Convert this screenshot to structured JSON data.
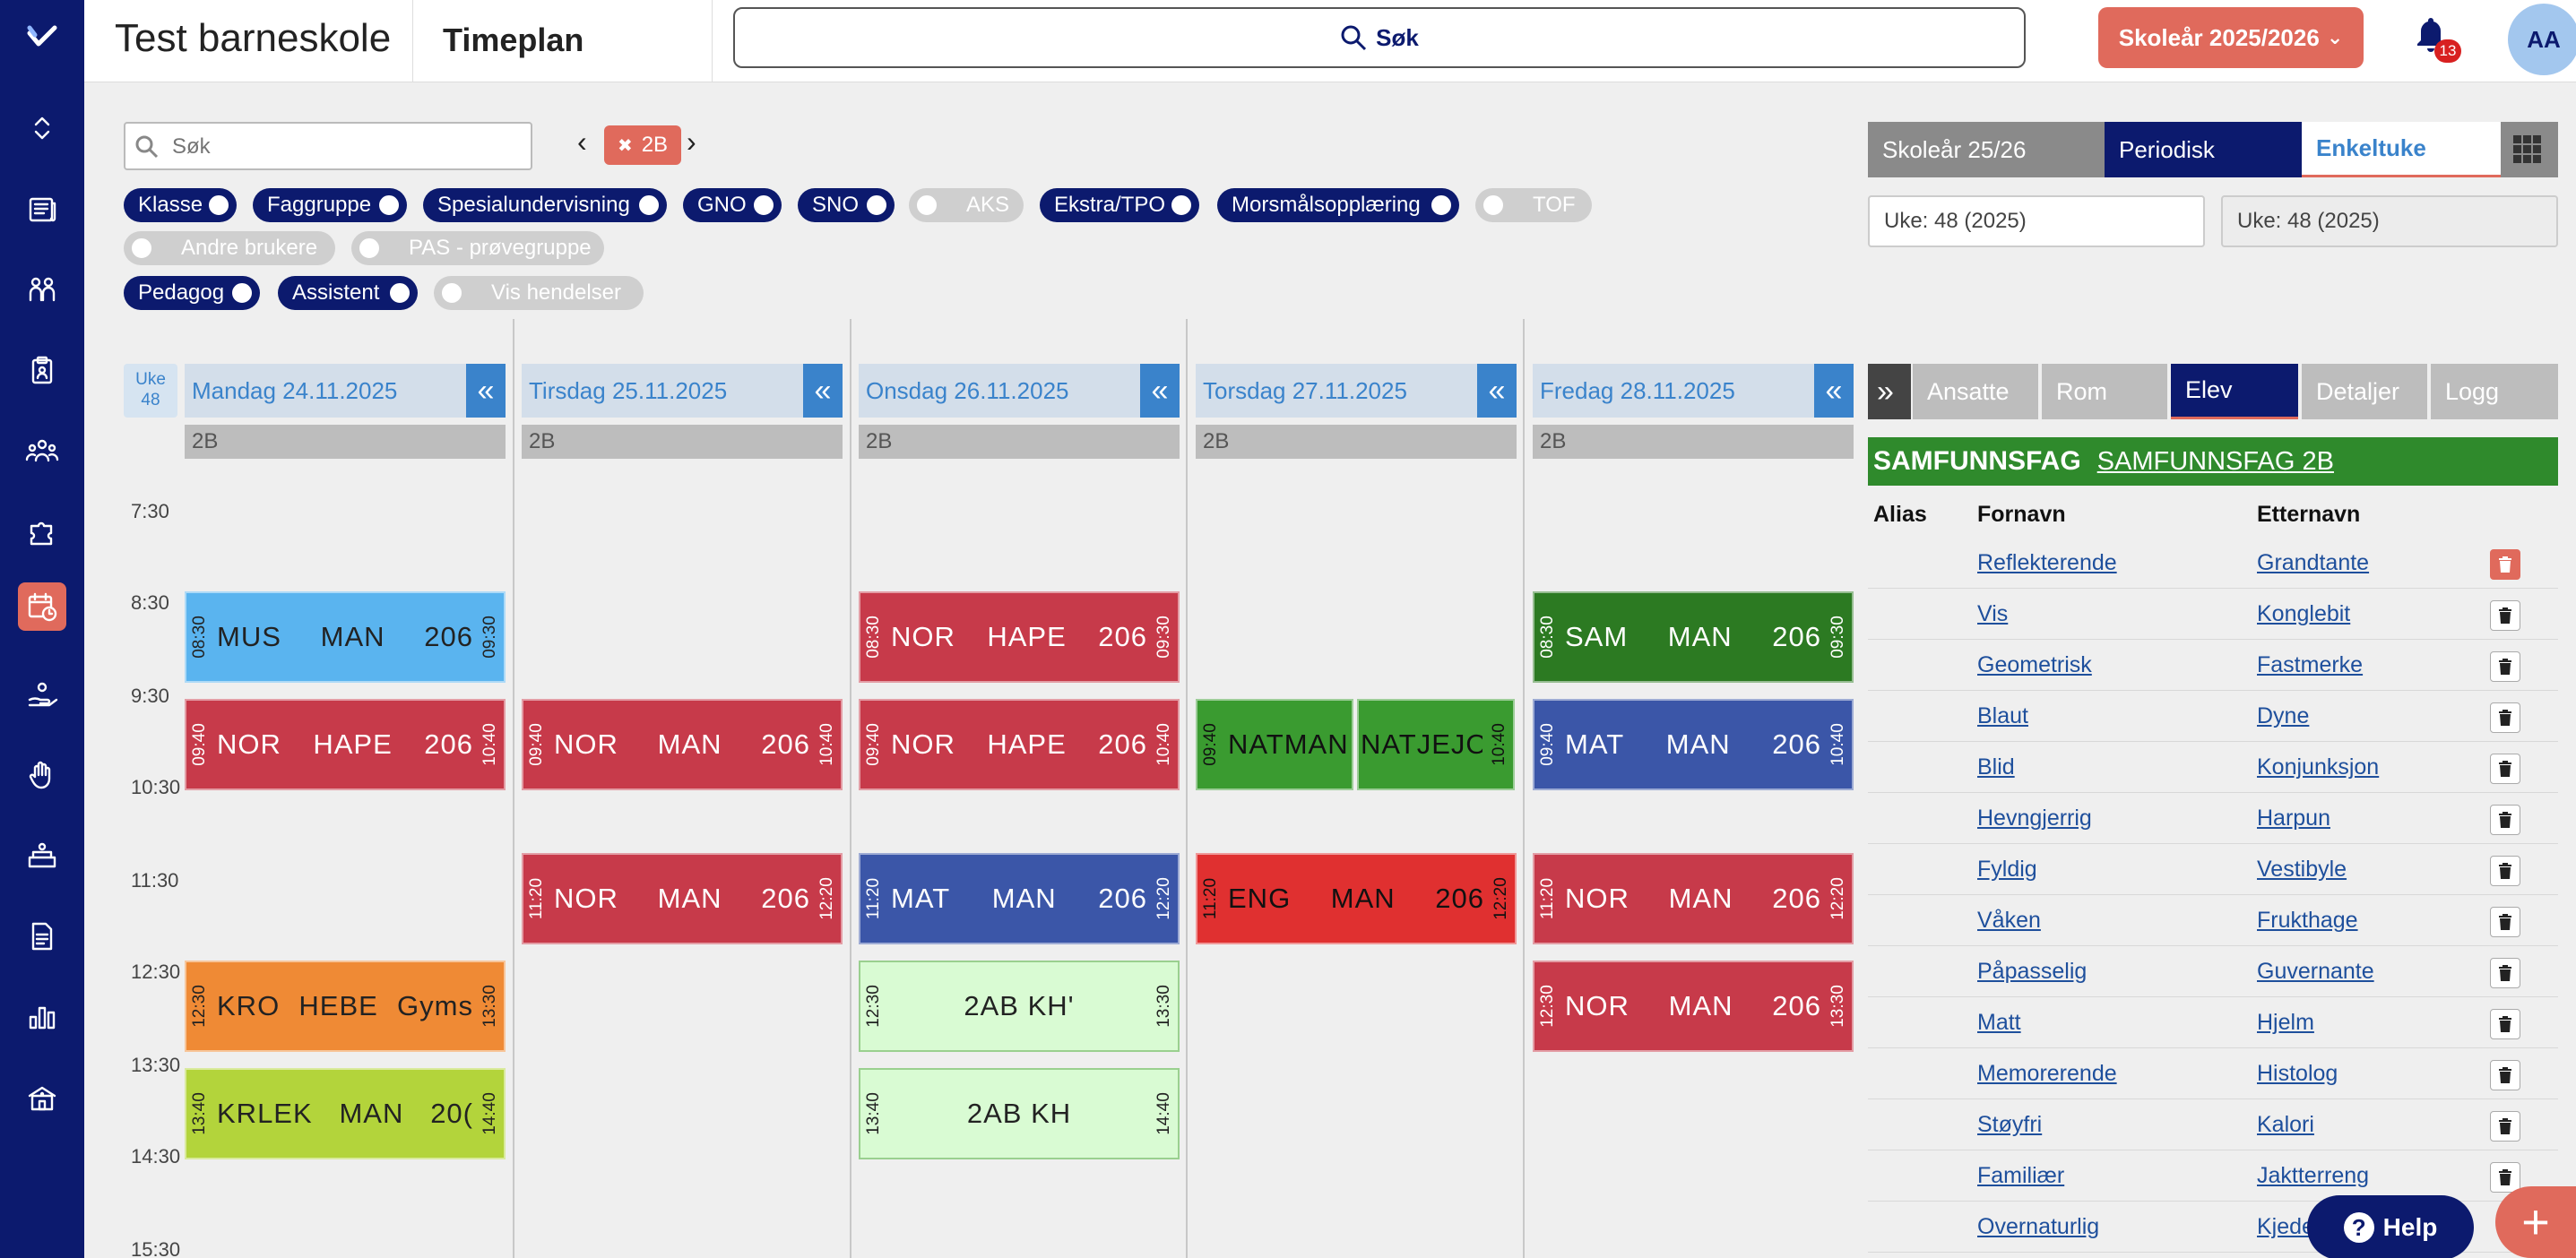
{
  "header": {
    "school_name": "Test barneskole",
    "page_title": "Timeplan",
    "search_label": "Søk",
    "school_year_button": "Skoleår 2025/2026",
    "notification_count": "13",
    "user_initials": "AA"
  },
  "filters": {
    "search_placeholder": "Søk",
    "selected_class": "2B",
    "toggles": [
      {
        "label": "Klasse",
        "on": true
      },
      {
        "label": "Faggruppe",
        "on": true
      },
      {
        "label": "Spesialundervisning",
        "on": true
      },
      {
        "label": "GNO",
        "on": true
      },
      {
        "label": "SNO",
        "on": true
      },
      {
        "label": "AKS",
        "on": false
      },
      {
        "label": "Ekstra/TPO",
        "on": true
      },
      {
        "label": "Morsmålsopplæring",
        "on": true
      },
      {
        "label": "TOF",
        "on": false
      },
      {
        "label": "Andre brukere",
        "on": false
      },
      {
        "label": "PAS - prøvegruppe",
        "on": false
      },
      {
        "label": "Pedagog",
        "on": true
      },
      {
        "label": "Assistent",
        "on": true
      },
      {
        "label": "Vis hendelser",
        "on": false
      }
    ]
  },
  "period_tabs": [
    "Skoleår 25/26",
    "Periodisk",
    "Enkeltuke"
  ],
  "week_fields": [
    "Uke: 48 (2025)",
    "Uke: 48 (2025)"
  ],
  "calendar": {
    "week_label": "Uke",
    "week_number": "48",
    "hours": [
      "7:30",
      "8:30",
      "9:30",
      "10:30",
      "11:30",
      "12:30",
      "13:30",
      "14:30",
      "15:30"
    ],
    "days": [
      {
        "label": "Mandag 24.11.2025",
        "class": "2B",
        "collapse": "«"
      },
      {
        "label": "Tirsdag 25.11.2025",
        "class": "2B",
        "collapse": "«"
      },
      {
        "label": "Onsdag 26.11.2025",
        "class": "2B",
        "collapse": "«"
      },
      {
        "label": "Torsdag 27.11.2025",
        "class": "2B",
        "collapse": "«"
      },
      {
        "label": "Fredag 28.11.2025",
        "class": "2B",
        "collapse": "«"
      }
    ],
    "lessons": {
      "mon_mus": {
        "start": "08:30",
        "end": "09:30",
        "subject": "MUS",
        "teacher": "MAN",
        "room": "206",
        "color": "#5ab4ef"
      },
      "mon_nor": {
        "start": "09:40",
        "end": "10:40",
        "subject": "NOR",
        "teacher": "HAPE",
        "room": "206",
        "color": "#c73a4a"
      },
      "mon_kro": {
        "start": "12:30",
        "end": "13:30",
        "subject": "KRO",
        "teacher": "HEBE",
        "room": "Gyms",
        "color": "#ef8a35"
      },
      "mon_krlek": {
        "start": "13:40",
        "end": "14:40",
        "subject": "KRLEK",
        "teacher": "MAN",
        "room": "20(",
        "color": "#b3d43b"
      },
      "tue_nor1": {
        "start": "09:40",
        "end": "10:40",
        "subject": "NOR",
        "teacher": "MAN",
        "room": "206",
        "color": "#c73a4a"
      },
      "tue_nor2": {
        "start": "11:20",
        "end": "12:20",
        "subject": "NOR",
        "teacher": "MAN",
        "room": "206",
        "color": "#c73a4a"
      },
      "wed_nor1": {
        "start": "08:30",
        "end": "09:30",
        "subject": "NOR",
        "teacher": "HAPE",
        "room": "206",
        "color": "#c73a4a"
      },
      "wed_nor2": {
        "start": "09:40",
        "end": "10:40",
        "subject": "NOR",
        "teacher": "HAPE",
        "room": "206",
        "color": "#c73a4a"
      },
      "wed_mat": {
        "start": "11:20",
        "end": "12:20",
        "subject": "MAT",
        "teacher": "MAN",
        "room": "206",
        "color": "#3b56a8"
      },
      "wed_2ab1": {
        "start": "12:30",
        "end": "13:30",
        "subject": "2AB KH'",
        "color": "#d9fbd3"
      },
      "wed_2ab2": {
        "start": "13:40",
        "end": "14:40",
        "subject": "2AB KH",
        "color": "#d9fbd3"
      },
      "thu_natman": {
        "start": "09:40",
        "subject": "NATMAN",
        "color": "#3a9b30"
      },
      "thu_natjejo": {
        "end": "10:40",
        "subject": "NATJEJO",
        "color": "#3a9b30"
      },
      "thu_eng": {
        "start": "11:20",
        "end": "12:20",
        "subject": "ENG",
        "teacher": "MAN",
        "room": "206",
        "color": "#e03030"
      },
      "fri_sam": {
        "start": "08:30",
        "end": "09:30",
        "subject": "SAM",
        "teacher": "MAN",
        "room": "206",
        "color": "#2c7a22"
      },
      "fri_mat": {
        "start": "09:40",
        "end": "10:40",
        "subject": "MAT",
        "teacher": "MAN",
        "room": "206",
        "color": "#3b56a8"
      },
      "fri_nor1": {
        "start": "11:20",
        "end": "12:20",
        "subject": "NOR",
        "teacher": "MAN",
        "room": "206",
        "color": "#c73a4a"
      },
      "fri_nor2": {
        "start": "12:30",
        "end": "13:30",
        "subject": "NOR",
        "teacher": "MAN",
        "room": "206",
        "color": "#c73a4a"
      }
    }
  },
  "panel": {
    "expand": "»",
    "tabs": [
      "Ansatte",
      "Rom",
      "Elev",
      "Detaljer",
      "Logg"
    ],
    "active_tab": "Elev",
    "subject_name": "SAMFUNNSFAG",
    "subject_link": "SAMFUNNSFAG 2B",
    "columns": {
      "alias": "Alias",
      "first": "Fornavn",
      "last": "Etternavn"
    },
    "students": [
      {
        "first": "Reflekterende",
        "last": "Grandtante"
      },
      {
        "first": "Vis",
        "last": "Konglebit"
      },
      {
        "first": "Geometrisk",
        "last": "Fastmerke"
      },
      {
        "first": "Blaut",
        "last": "Dyne"
      },
      {
        "first": "Blid",
        "last": "Konjunksjon"
      },
      {
        "first": "Hevngjerrig",
        "last": "Harpun"
      },
      {
        "first": "Fyldig",
        "last": "Vestibyle"
      },
      {
        "first": "Våken",
        "last": "Frukthage"
      },
      {
        "first": "Påpasselig",
        "last": "Guvernante"
      },
      {
        "first": "Matt",
        "last": "Hjelm"
      },
      {
        "first": "Memorerende",
        "last": "Histolog"
      },
      {
        "first": "Støyfri",
        "last": "Kalori"
      },
      {
        "first": "Familiær",
        "last": "Jaktterreng"
      },
      {
        "first": "Overnaturlig",
        "last": "Kjede"
      }
    ]
  },
  "help_label": "Help",
  "fab_label": "+",
  "colors": {
    "brand_navy": "#0c1a6e",
    "accent_coral": "#e06a5c",
    "day_blue": "#3a83cb"
  }
}
